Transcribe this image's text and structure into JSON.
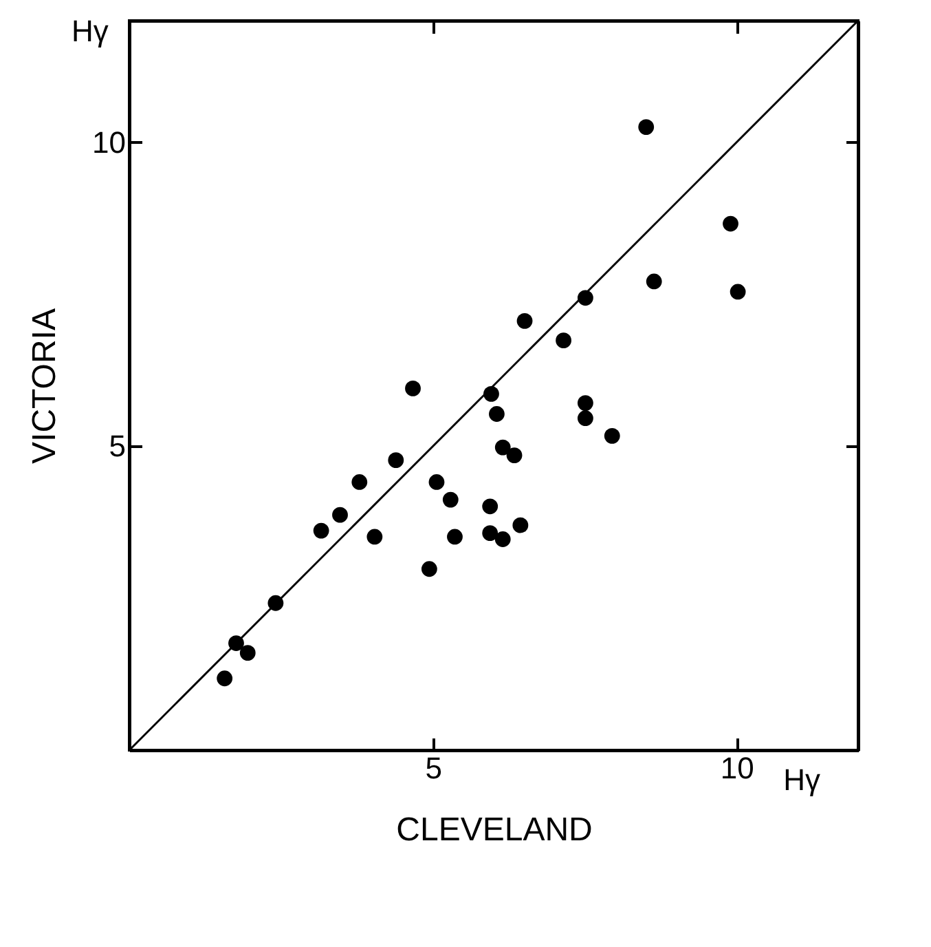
{
  "chart_data": {
    "type": "scatter",
    "xlabel": "CLEVELAND",
    "ylabel": "VICTORIA",
    "annotations": [
      "Hγ",
      "Hγ"
    ],
    "xlim": [
      0,
      12
    ],
    "ylim": [
      0,
      12
    ],
    "xticks": [
      5,
      10
    ],
    "yticks": [
      5,
      10
    ],
    "grid": false,
    "series": [
      {
        "marker": "circle",
        "color": "#000000",
        "x": [
          1.57,
          1.76,
          1.95,
          2.41,
          3.16,
          3.47,
          3.79,
          4.04,
          4.39,
          4.67,
          4.94,
          5.06,
          5.29,
          5.36,
          5.96,
          6.05,
          5.94,
          5.94,
          6.15,
          6.15,
          6.34,
          6.44,
          6.51,
          7.15,
          7.51,
          7.51,
          7.51,
          7.95,
          8.51,
          8.64,
          9.9,
          10.02
        ],
        "values": [
          1.18,
          1.76,
          1.6,
          2.42,
          3.61,
          3.87,
          4.41,
          3.51,
          4.77,
          5.95,
          2.98,
          4.41,
          4.12,
          3.51,
          5.86,
          5.53,
          4.01,
          3.57,
          4.98,
          3.47,
          4.85,
          3.7,
          7.06,
          6.74,
          7.44,
          5.71,
          5.46,
          5.17,
          10.25,
          7.71,
          8.66,
          7.54
        ]
      },
      {
        "type": "line",
        "color": "#000000",
        "x": [
          0,
          12
        ],
        "values": [
          0,
          12
        ]
      }
    ]
  }
}
